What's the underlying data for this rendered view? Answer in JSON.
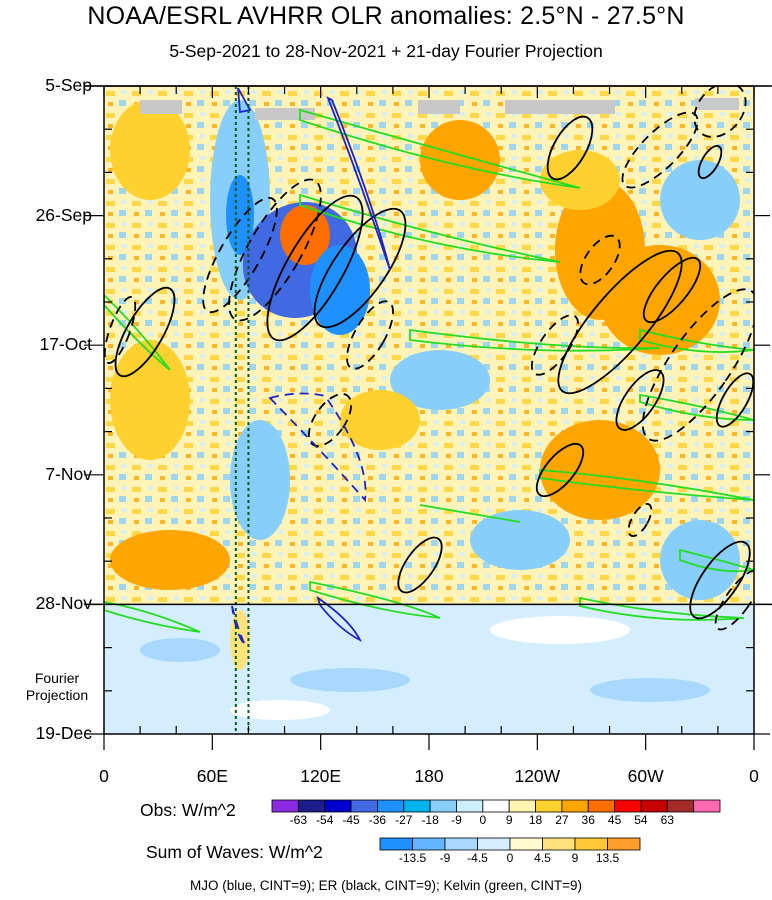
{
  "chart_data": {
    "type": "heatmap",
    "title": "NOAA/ESRL AVHRR OLR anomalies: 2.5°N - 27.5°N",
    "subtitle": "5-Sep-2021 to 28-Nov-2021 + 21-day Fourier Projection",
    "x_ticks": [
      "0",
      "60E",
      "120E",
      "180",
      "120W",
      "60W",
      "0"
    ],
    "y_ticks": [
      "5-Sep",
      "26-Sep",
      "17-Oct",
      "7-Nov",
      "28-Nov",
      "19-Dec"
    ],
    "xlim_deg_east": [
      0,
      360
    ],
    "ylim_days_from_start": [
      0,
      105
    ],
    "obs_end_days_from_start": 84,
    "projection_label": [
      "Fourier",
      "Projection"
    ],
    "obs_colorbar": {
      "title": "Obs: W/m^2",
      "levels": [
        "-63",
        "-54",
        "-45",
        "-36",
        "-27",
        "-18",
        "-9",
        "0",
        "9",
        "18",
        "27",
        "36",
        "45",
        "54",
        "63"
      ],
      "colors": [
        "#8a2be2",
        "#1c1c8a",
        "#0000cd",
        "#4169e1",
        "#1e90ff",
        "#00b2ee",
        "#87cefa",
        "#cdeeff",
        "#ffffff",
        "#fff5b0",
        "#ffd12e",
        "#ffa500",
        "#ff6f00",
        "#ff0000",
        "#c80000",
        "#a52a2a",
        "#ff69b4"
      ]
    },
    "waves_colorbar": {
      "title": "Sum of Waves: W/m^2",
      "levels": [
        "-13.5",
        "-9",
        "-4.5",
        "0",
        "4.5",
        "9",
        "13.5"
      ],
      "colors": [
        "#1e90ff",
        "#65b4ff",
        "#a8d8ff",
        "#d5eeff",
        "#fffbd0",
        "#ffe27a",
        "#ffc73a",
        "#ff9c2a"
      ]
    },
    "caption": "MJO (blue, CINT=9); ER (black, CINT=9); Kelvin (green, CINT=9)",
    "series": [
      {
        "name": "MJO",
        "color": "#1c24c8"
      },
      {
        "name": "ER",
        "color": "#000000"
      },
      {
        "name": "Kelvin",
        "color": "#22dd22"
      }
    ],
    "reference_lines_deg_east": [
      73,
      80
    ]
  }
}
